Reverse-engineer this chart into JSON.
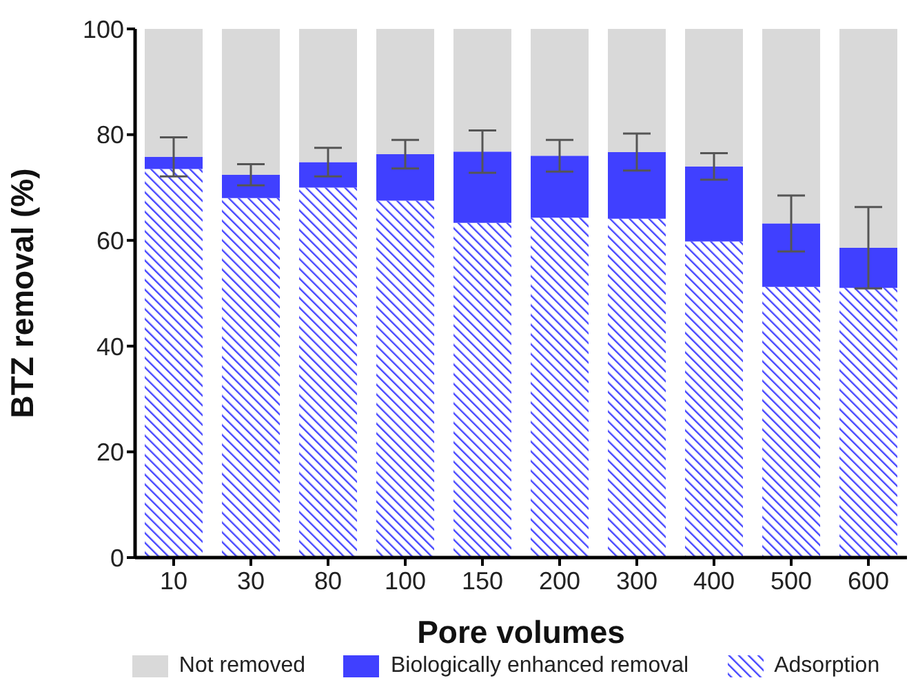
{
  "chart_data": {
    "type": "bar",
    "stacked": true,
    "xlabel": "Pore volumes",
    "ylabel": "BTZ removal (%)",
    "categories": [
      "10",
      "30",
      "80",
      "100",
      "150",
      "200",
      "300",
      "400",
      "500",
      "600"
    ],
    "series": [
      {
        "name": "Adsorption",
        "color": "#4646ff",
        "values": [
          73.5,
          68,
          70,
          67.5,
          63.3,
          64.3,
          64.1,
          59.8,
          51.2,
          51
        ]
      },
      {
        "name": "Biologically enhanced removal",
        "color": "#4040ff",
        "values": [
          2.3,
          4.4,
          4.8,
          8.8,
          13.5,
          11.7,
          12.6,
          14.2,
          12,
          7.6
        ],
        "errors": [
          3.7,
          2,
          2.7,
          2.7,
          4,
          3,
          3.5,
          2.5,
          5.3,
          7.7
        ]
      },
      {
        "name": "Not removed",
        "color": "#d9d9d9",
        "values": [
          24.2,
          27.6,
          25.2,
          23.7,
          23.2,
          24,
          23.3,
          26,
          36.8,
          41.4
        ]
      }
    ],
    "ylim": [
      0,
      100
    ],
    "yticks": [
      0,
      20,
      40,
      60,
      80,
      100
    ],
    "legend": "bottom"
  }
}
